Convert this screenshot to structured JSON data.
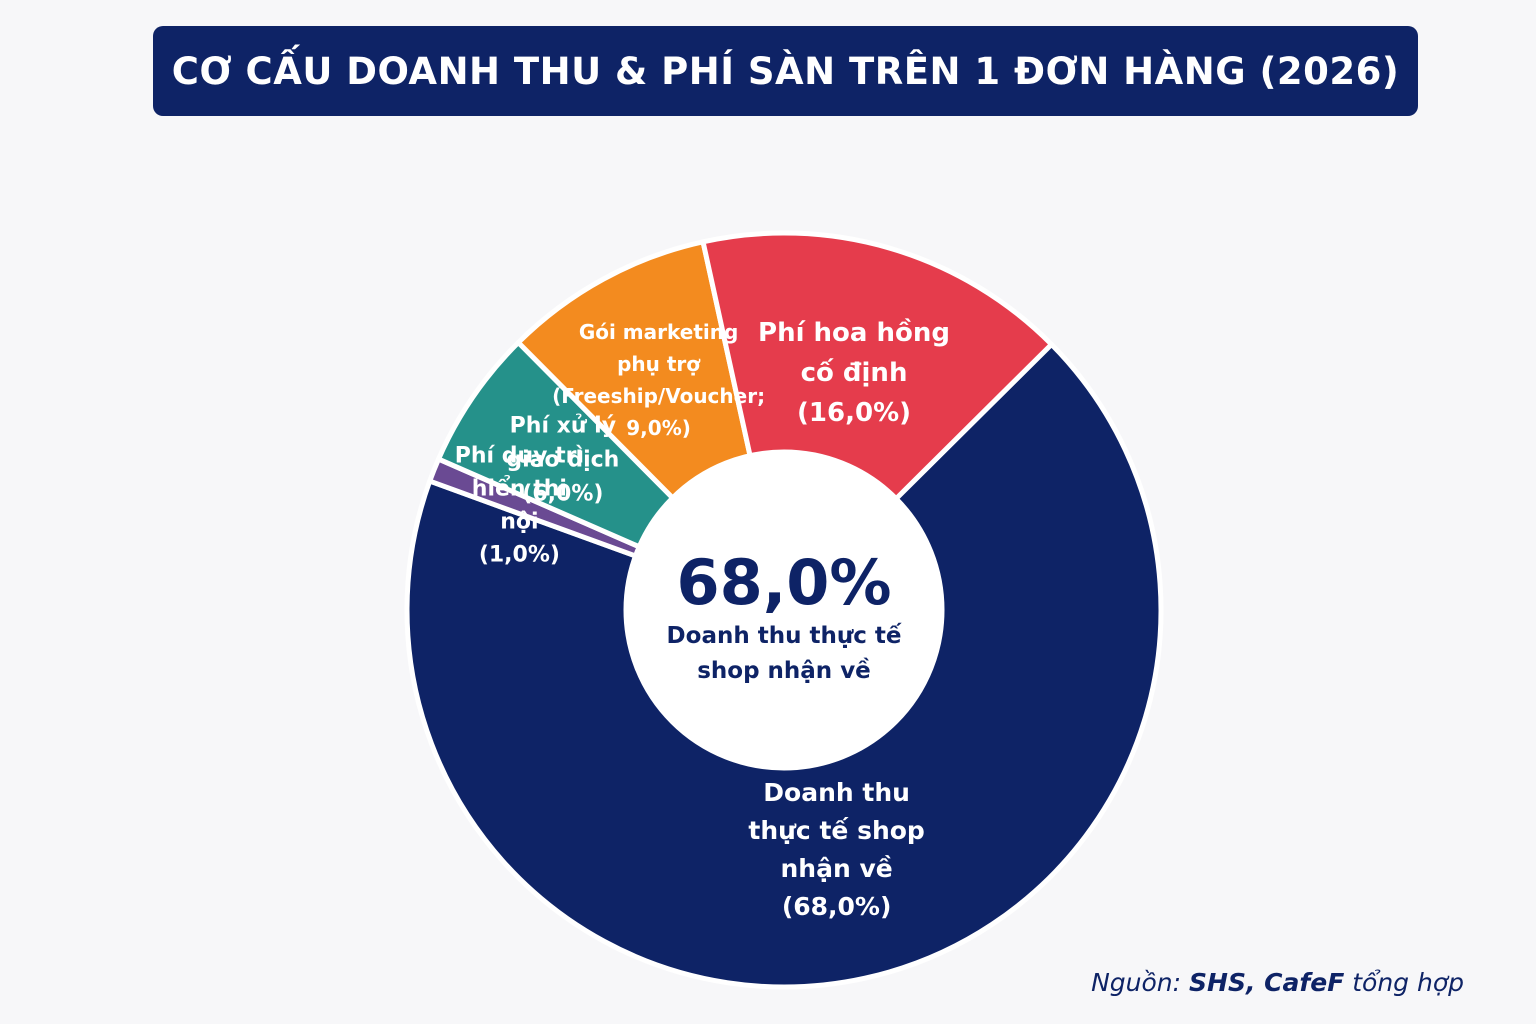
{
  "title": "CƠ CẤU DOANH THU & PHÍ SÀN TRÊN 1 ĐƠN HÀNG (2026)",
  "chart_data": {
    "type": "pie",
    "style": "donut",
    "title": "CƠ CẤU DOANH THU & PHÍ SÀN TRÊN 1 ĐƠN HÀNG (2026)",
    "center": {
      "value": "68,0%",
      "caption_lines": [
        "Doanh thu thực tế",
        "shop nhận về"
      ]
    },
    "slices": [
      {
        "name": "Doanh thu thực tế shop nhận về",
        "value": 68.0,
        "color": "#0e2366",
        "label_lines": [
          "Doanh thu",
          "thực tế shop",
          "nhận về",
          "(68,0%)"
        ]
      },
      {
        "name": "Phí duy trì hiển thị nội",
        "value": 1.0,
        "color": "#6a4a93",
        "label_lines": [
          "Phí duy trì",
          "hiển thị",
          "nội",
          "(1,0%)"
        ]
      },
      {
        "name": "Phí xử lý giao dịch",
        "value": 6.0,
        "color": "#25918a",
        "label_lines": [
          "Phí xử lý",
          "giao dịch",
          "(6,0%)"
        ]
      },
      {
        "name": "Gói marketing phụ trợ (Freeship/Voucher)",
        "value": 9.0,
        "color": "#f38b1f",
        "label_lines": [
          "Gói marketing",
          "phụ trợ",
          "(Freeship/Voucher;",
          "9,0%)"
        ]
      },
      {
        "name": "Phí hoa hồng cố định",
        "value": 16.0,
        "color": "#e53c4c",
        "label_lines": [
          "Phí hoa hồng",
          "cố định",
          "(16,0%)"
        ]
      }
    ]
  },
  "source": {
    "prefix": "Nguồn: ",
    "names": "SHS, CafeF",
    "suffix": " tổng hợp"
  }
}
